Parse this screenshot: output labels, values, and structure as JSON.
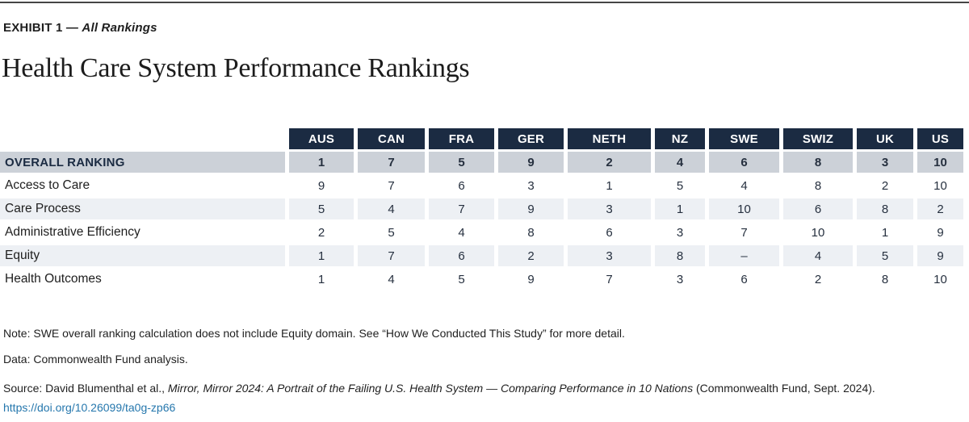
{
  "header": {
    "exhibit_label": "EXHIBIT 1 — ",
    "exhibit_sublabel": "All Rankings",
    "title": "Health Care System Performance Rankings"
  },
  "table": {
    "columns": [
      "AUS",
      "CAN",
      "FRA",
      "GER",
      "NETH",
      "NZ",
      "SWE",
      "SWIZ",
      "UK",
      "US"
    ],
    "rows": [
      {
        "label": "OVERALL RANKING",
        "values": [
          "1",
          "7",
          "5",
          "9",
          "2",
          "4",
          "6",
          "8",
          "3",
          "10"
        ]
      },
      {
        "label": "Access to Care",
        "values": [
          "9",
          "7",
          "6",
          "3",
          "1",
          "5",
          "4",
          "8",
          "2",
          "10"
        ]
      },
      {
        "label": "Care Process",
        "values": [
          "5",
          "4",
          "7",
          "9",
          "3",
          "1",
          "10",
          "6",
          "8",
          "2"
        ]
      },
      {
        "label": "Administrative Efficiency",
        "values": [
          "2",
          "5",
          "4",
          "8",
          "6",
          "3",
          "7",
          "10",
          "1",
          "9"
        ]
      },
      {
        "label": "Equity",
        "values": [
          "1",
          "7",
          "6",
          "2",
          "3",
          "8",
          "–",
          "4",
          "5",
          "9"
        ]
      },
      {
        "label": "Health Outcomes",
        "values": [
          "1",
          "4",
          "5",
          "9",
          "7",
          "3",
          "6",
          "2",
          "8",
          "10"
        ]
      }
    ]
  },
  "notes": {
    "note": "Note: SWE overall ranking calculation does not include Equity domain. See “How We Conducted This Study” for more detail.",
    "data_credit": "Data: Commonwealth Fund analysis.",
    "source_prefix": "Source: David Blumenthal et al., ",
    "source_title": "Mirror, Mirror 2024: A Portrait of the Failing U.S. Health System — Comparing Performance in 10 Nations",
    "source_suffix": " (Commonwealth Fund, Sept. 2024).",
    "link": "https://doi.org/10.26099/ta0g-zp66"
  },
  "colors": {
    "header_navy": "#1b2b42",
    "overall_row_bg": "#ccd1d8",
    "stripe_row_bg": "#edf0f4",
    "link_blue": "#2577ad",
    "top_rule": "#454545"
  },
  "chart_data": {
    "type": "table",
    "title": "Health Care System Performance Rankings",
    "columns": [
      "AUS",
      "CAN",
      "FRA",
      "GER",
      "NETH",
      "NZ",
      "SWE",
      "SWIZ",
      "UK",
      "US"
    ],
    "rows": [
      {
        "label": "OVERALL RANKING",
        "values": [
          1,
          7,
          5,
          9,
          2,
          4,
          6,
          8,
          3,
          10
        ]
      },
      {
        "label": "Access to Care",
        "values": [
          9,
          7,
          6,
          3,
          1,
          5,
          4,
          8,
          2,
          10
        ]
      },
      {
        "label": "Care Process",
        "values": [
          5,
          4,
          7,
          9,
          3,
          1,
          10,
          6,
          8,
          2
        ]
      },
      {
        "label": "Administrative Efficiency",
        "values": [
          2,
          5,
          4,
          8,
          6,
          3,
          7,
          10,
          1,
          9
        ]
      },
      {
        "label": "Equity",
        "values": [
          1,
          7,
          6,
          2,
          3,
          8,
          null,
          4,
          5,
          9
        ]
      },
      {
        "label": "Health Outcomes",
        "values": [
          1,
          4,
          5,
          9,
          7,
          3,
          6,
          2,
          8,
          10
        ]
      }
    ],
    "notes": "SWE overall ranking calculation does not include Equity domain; Equity value for SWE shown as dash."
  }
}
